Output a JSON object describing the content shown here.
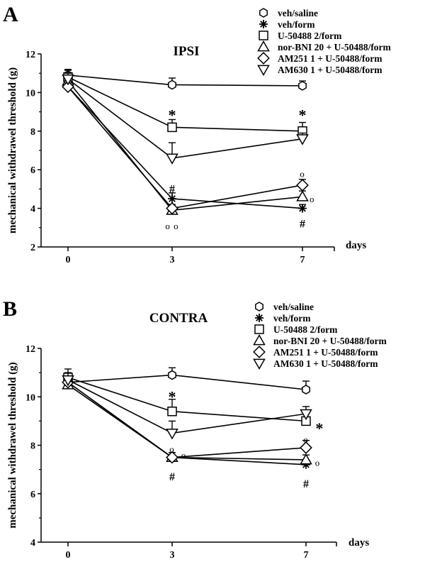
{
  "chart_data": [
    {
      "type": "line",
      "panel": "A",
      "title": "IPSI",
      "xlabel": "days",
      "ylabel": "mechanical withdrawel threshold (g)",
      "x": [
        0,
        3,
        7
      ],
      "xticks": [
        "0",
        "3",
        "7"
      ],
      "yticks": [
        "2",
        "4",
        "6",
        "8",
        "10",
        "12"
      ],
      "ylim": [
        2,
        12
      ],
      "series": [
        {
          "name": "veh/saline",
          "marker": "hexagon",
          "values": [
            10.9,
            10.4,
            10.35
          ],
          "err": [
            0.3,
            0.35,
            0.25
          ]
        },
        {
          "name": "veh/form",
          "marker": "asterisk",
          "values": [
            10.3,
            4.5,
            4.0
          ],
          "err": [
            0.2,
            0.3,
            0.2
          ]
        },
        {
          "name": "U-50488 2/form",
          "marker": "square",
          "values": [
            10.8,
            8.2,
            8.0
          ],
          "err": [
            0.35,
            0.4,
            0.45
          ]
        },
        {
          "name": "nor-BNI 20 + U-50488/form",
          "marker": "triangle-up",
          "values": [
            10.6,
            3.9,
            4.6
          ],
          "err": [
            0.2,
            0.2,
            0.3
          ]
        },
        {
          "name": "AM251 1 + U-50488/form",
          "marker": "diamond",
          "values": [
            10.3,
            4.0,
            5.2
          ],
          "err": [
            0.2,
            0.2,
            0.3
          ]
        },
        {
          "name": "AM630 1 + U-50488/form",
          "marker": "triangle-down",
          "values": [
            10.7,
            6.6,
            7.6
          ],
          "err": [
            0.3,
            0.8,
            0.3
          ]
        }
      ],
      "annotations": [
        {
          "text": "*",
          "x": 3,
          "y": 8.9
        },
        {
          "text": "*",
          "x": 7,
          "y": 8.9
        },
        {
          "text": "#",
          "x": 3,
          "y": 5.0
        },
        {
          "text": "#",
          "x": 7,
          "y": 3.2
        },
        {
          "text": "o o",
          "x": 3,
          "y": 3.1
        },
        {
          "text": "o",
          "x": 7,
          "y": 5.8
        },
        {
          "text": "o",
          "x": 7.3,
          "y": 4.5
        }
      ]
    },
    {
      "type": "line",
      "panel": "B",
      "title": "CONTRA",
      "xlabel": "days",
      "ylabel": "mechanical withdrawel threshold (g)",
      "x": [
        0,
        3,
        7
      ],
      "xticks": [
        "0",
        "3",
        "7"
      ],
      "yticks": [
        "4",
        "6",
        "8",
        "10",
        "12"
      ],
      "ylim": [
        4,
        12
      ],
      "series": [
        {
          "name": "veh/saline",
          "marker": "hexagon",
          "values": [
            10.6,
            10.9,
            10.3
          ],
          "err": [
            0.3,
            0.3,
            0.35
          ]
        },
        {
          "name": "veh/form",
          "marker": "asterisk",
          "values": [
            10.6,
            7.5,
            7.2
          ],
          "err": [
            0.2,
            0.2,
            0.2
          ]
        },
        {
          "name": "U-50488 2/form",
          "marker": "square",
          "values": [
            10.8,
            9.4,
            9.0
          ],
          "err": [
            0.35,
            0.5,
            0.3
          ]
        },
        {
          "name": "nor-BNI 20 + U-50488/form",
          "marker": "triangle-up",
          "values": [
            10.5,
            7.5,
            7.4
          ],
          "err": [
            0.2,
            0.2,
            0.2
          ]
        },
        {
          "name": "AM251 1 + U-50488/form",
          "marker": "diamond",
          "values": [
            10.6,
            7.5,
            7.9
          ],
          "err": [
            0.2,
            0.2,
            0.3
          ]
        },
        {
          "name": "AM630 1 + U-50488/form",
          "marker": "triangle-down",
          "values": [
            10.7,
            8.5,
            9.3
          ],
          "err": [
            0.3,
            0.5,
            0.3
          ]
        }
      ],
      "annotations": [
        {
          "text": "*",
          "x": 3,
          "y": 10.05
        },
        {
          "text": "*",
          "x": 7.4,
          "y": 8.75
        },
        {
          "text": "#",
          "x": 3,
          "y": 6.7
        },
        {
          "text": "#",
          "x": 7,
          "y": 6.4
        },
        {
          "text": "o",
          "x": 3,
          "y": 7.85
        },
        {
          "text": "o",
          "x": 3.35,
          "y": 7.6
        },
        {
          "text": "o",
          "x": 7,
          "y": 8.25
        },
        {
          "text": "o",
          "x": 7.35,
          "y": 7.3
        }
      ]
    }
  ]
}
